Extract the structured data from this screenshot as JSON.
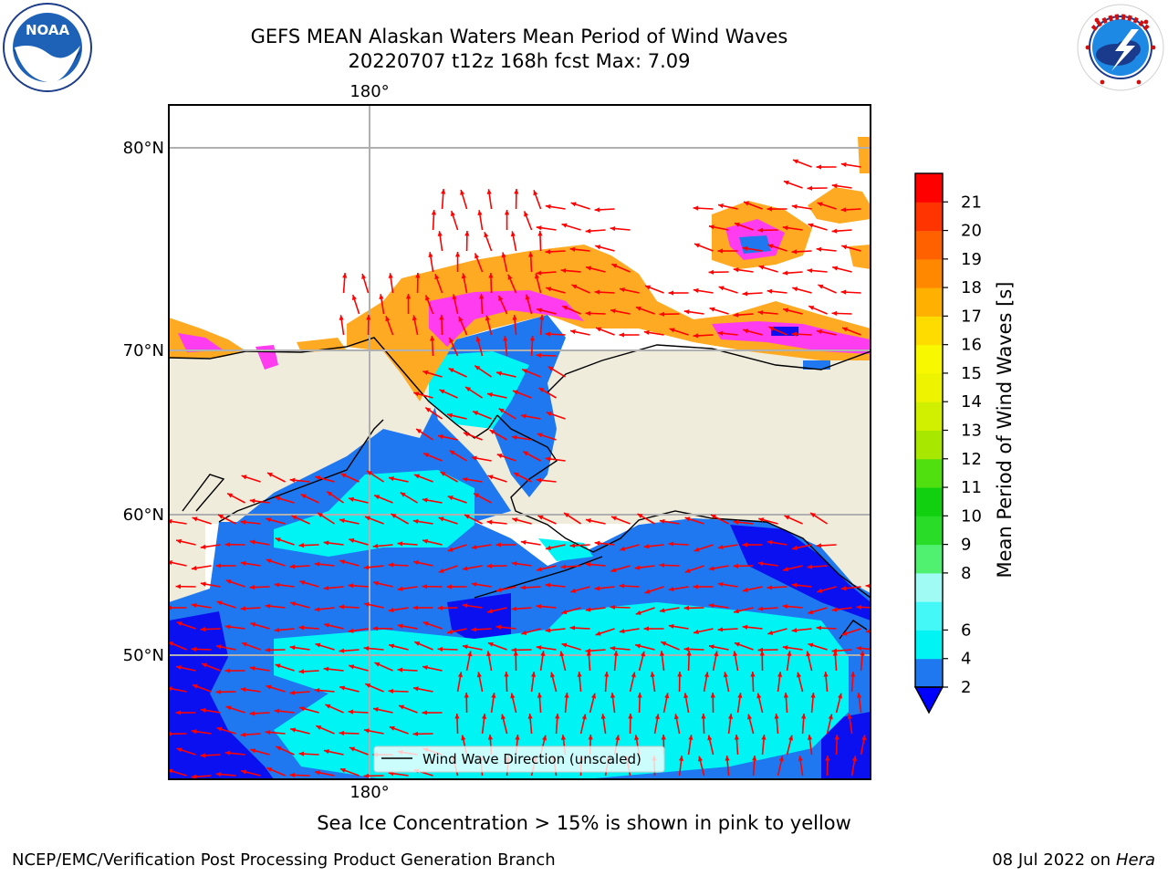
{
  "title": {
    "line1": "GEFS MEAN Alaskan Waters Mean Period of Wind Waves",
    "line2": "20220707 t12z 168h fcst   Max: 7.09"
  },
  "logos": {
    "left": {
      "text": "NOAA",
      "icon": "noaa-logo-icon"
    },
    "right": {
      "icon": "nws-logo-icon",
      "ring_text": "NATIONAL WEATHER SERVICE"
    }
  },
  "map": {
    "lon_label_top": "180°",
    "lon_label_bottom": "180°",
    "lat_labels": [
      "80°N",
      "70°N",
      "60°N",
      "50°N"
    ],
    "legend_text": "Wind Wave Direction (unscaled)",
    "colors": {
      "land": "#efecdc",
      "ocean_2_4": "#1f78f0",
      "ocean_lt2": "#0b10f0",
      "ocean_4_6": "#00f4f4",
      "ice_pink": "#ff3cf0",
      "ice_orange": "#ffaa22",
      "ice_yellow": "#ffe040",
      "arrow": "#ff0000"
    }
  },
  "colorbar": {
    "label": "Mean Period of Wind Waves [s]",
    "ticks": [
      "2",
      "4",
      "6",
      "7",
      "8",
      "9",
      "10",
      "11",
      "12",
      "13",
      "14",
      "15",
      "16",
      "17",
      "18",
      "19",
      "20",
      "21"
    ],
    "tick_labels": [
      "2",
      "4",
      "6",
      "8",
      "9",
      "10",
      "11",
      "12",
      "13",
      "14",
      "15",
      "16",
      "17",
      "18",
      "19",
      "20",
      "21"
    ],
    "colors": [
      "#1f78f0",
      "#00f4f4",
      "#44f8f8",
      "#a0fbf4",
      "#50f070",
      "#28dc28",
      "#10d010",
      "#50e010",
      "#a8e800",
      "#d0f000",
      "#eef400",
      "#f8f800",
      "#ffdc00",
      "#ffb000",
      "#ff8800",
      "#ff6000",
      "#ff3400",
      "#ff0000"
    ],
    "extend_min_color": "#0000ff"
  },
  "caption": "Sea Ice Concentration > 15% is shown in pink to yellow",
  "footer": {
    "left": "NCEP/EMC/Verification Post Processing Product Generation Branch",
    "right_date": "08 Jul 2022 on ",
    "right_machine": "Hera"
  }
}
